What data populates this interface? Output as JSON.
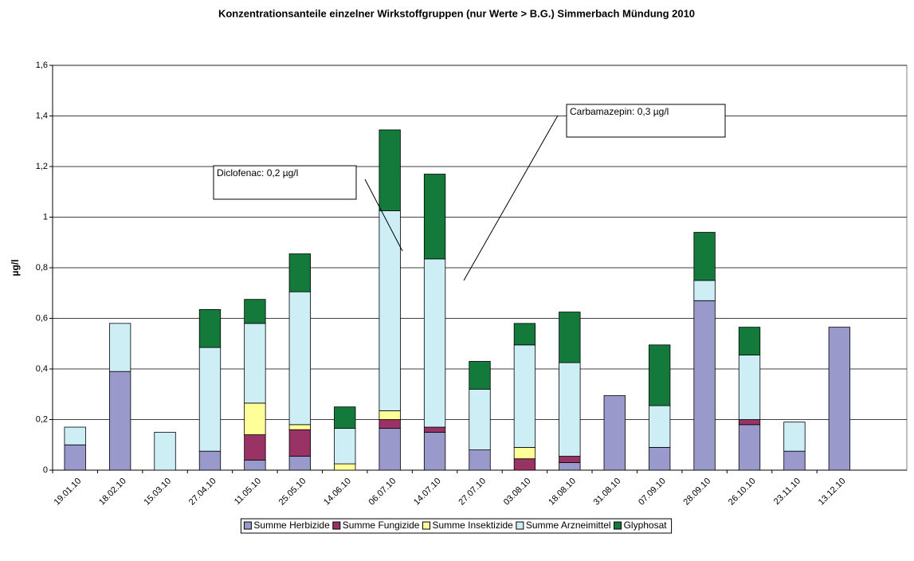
{
  "chart_data": {
    "type": "stacked_bar",
    "title": "Konzentrationsanteile einzelner Wirkstoffgruppen (nur Werte > B.G.) Simmerbach Mündung 2010",
    "ylabel": "µg/l",
    "categories": [
      "19.01.10",
      "18.02.10",
      "15.03.10",
      "27.04.10",
      "11.05.10",
      "25.05.10",
      "14.06.10",
      "06.07.10",
      "14.07.10",
      "27.07.10",
      "03.08.10",
      "18.08.10",
      "31.08.10",
      "07.09.10",
      "28.09.10",
      "26.10.10",
      "23.11.10",
      "13.12.10"
    ],
    "series": [
      {
        "name": "Summe Herbizide",
        "color": "#9999cc",
        "values": [
          0.1,
          0.39,
          0,
          0.075,
          0.04,
          0.055,
          0,
          0.165,
          0.15,
          0.08,
          0,
          0.03,
          0.295,
          0.09,
          0.67,
          0.18,
          0.075,
          0.565
        ]
      },
      {
        "name": "Summe Fungizide",
        "color": "#993366",
        "values": [
          0,
          0,
          0,
          0,
          0.1,
          0.105,
          0,
          0.035,
          0.02,
          0,
          0.045,
          0.025,
          0,
          0,
          0,
          0.02,
          0,
          0
        ]
      },
      {
        "name": "Summe Insektizide",
        "color": "#ffff99",
        "values": [
          0,
          0,
          0,
          0,
          0.125,
          0.02,
          0.025,
          0.035,
          0,
          0,
          0.045,
          0,
          0,
          0,
          0,
          0,
          0,
          0
        ]
      },
      {
        "name": "Summe Arzneimittel",
        "color": "#cceef4",
        "values": [
          0.07,
          0.19,
          0.15,
          0.41,
          0.315,
          0.525,
          0.14,
          0.79,
          0.665,
          0.24,
          0.405,
          0.37,
          0,
          0.165,
          0.08,
          0.255,
          0.115,
          0
        ]
      },
      {
        "name": "Glyphosat",
        "color": "#137a3c",
        "values": [
          0,
          0,
          0,
          0.15,
          0.095,
          0.15,
          0.085,
          0.32,
          0.335,
          0.11,
          0.085,
          0.2,
          0,
          0.24,
          0.19,
          0.11,
          0,
          0
        ]
      }
    ],
    "ylim": [
      0,
      1.6
    ],
    "yticks": [
      0,
      {
        "value": 0.2,
        "label": "0,2"
      },
      {
        "value": 0.4,
        "label": "0,4"
      },
      {
        "value": 0.6,
        "label": "0,6"
      },
      {
        "value": 0.8,
        "label": "0,8"
      },
      1,
      {
        "value": 1.2,
        "label": "1,2"
      },
      {
        "value": 1.4,
        "label": "1,4"
      },
      {
        "value": 1.6,
        "label": "1,6"
      }
    ],
    "grid": true,
    "legend": "bottom",
    "annotations": [
      {
        "text": "Diclofenac: 0,2 µg/l"
      },
      {
        "text": "Carbamazepin: 0,3 µg/l"
      }
    ]
  }
}
